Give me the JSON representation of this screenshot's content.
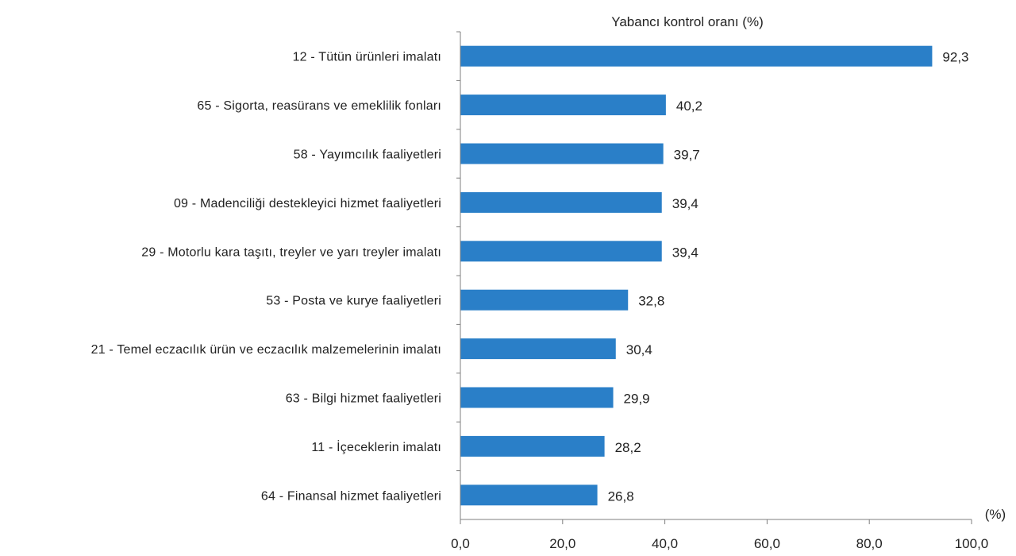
{
  "chart_data": {
    "type": "bar",
    "orientation": "horizontal",
    "title": "Yabancı kontrol oranı (%)",
    "xlabel": "(%)",
    "ylabel": "",
    "xlim": [
      0,
      100
    ],
    "x_ticks": [
      0,
      20,
      40,
      60,
      80,
      100
    ],
    "x_tick_labels": [
      "0,0",
      "20,0",
      "40,0",
      "60,0",
      "80,0",
      "100,0"
    ],
    "categories": [
      "12 - Tütün ürünleri imalatı",
      "65 - Sigorta, reasürans ve emeklilik fonları",
      "58 - Yayımcılık faaliyetleri",
      "09 - Madenciliği destekleyici hizmet faaliyetleri",
      "29 - Motorlu kara taşıtı, treyler ve yarı treyler imalatı",
      "53 - Posta ve kurye faaliyetleri",
      "21 - Temel eczacılık ürün ve eczacılık malzemelerinin imalatı",
      "63 - Bilgi hizmet faaliyetleri",
      "11 - İçeceklerin imalatı",
      "64 - Finansal hizmet faaliyetleri"
    ],
    "values": [
      92.3,
      40.2,
      39.7,
      39.4,
      39.4,
      32.8,
      30.4,
      29.9,
      28.2,
      26.8
    ],
    "value_labels": [
      "92,3",
      "40,2",
      "39,7",
      "39,4",
      "39,4",
      "32,8",
      "30,4",
      "29,9",
      "28,2",
      "26,8"
    ],
    "bar_color": "#2a7fc8",
    "grid": false,
    "legend": false
  }
}
